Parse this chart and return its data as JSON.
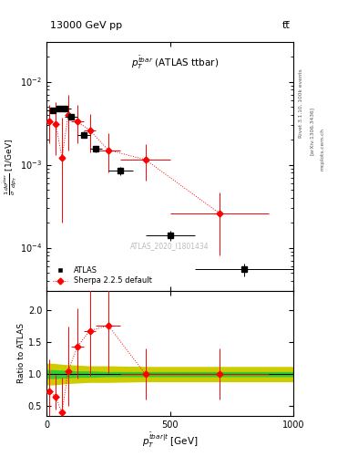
{
  "header_left": "13000 GeV pp",
  "header_right": "tt̅",
  "right_label_top": "Rivet 3.1.10, 100k events",
  "right_label_mid": "[arXiv:1306.3436]",
  "right_label_bot": "mcplots.cern.ch",
  "plot_id": "ATLAS_2020_I1801434",
  "ylabel_main": "$\\frac{1}{\\sigma}\\frac{d\\sigma^{\\bar{t}bar}}{dp_T}$ [1/GeV]",
  "ylabel_ratio": "Ratio to ATLAS",
  "xlabel": "$p^{\\bar{t}bar|t}_T$ [GeV]",
  "xlim": [
    0,
    1000
  ],
  "ylim_main": [
    3e-05,
    0.03
  ],
  "ylim_ratio": [
    0.35,
    2.3
  ],
  "ratio_yticks": [
    0.5,
    1.0,
    1.5,
    2.0
  ],
  "atlas_x": [
    25,
    50,
    75,
    100,
    150,
    200,
    300,
    500,
    800
  ],
  "atlas_y": [
    0.0045,
    0.0048,
    0.0047,
    0.0038,
    0.0023,
    0.00155,
    0.00085,
    0.00014,
    5.5e-05
  ],
  "atlas_xerr_lo": [
    25,
    25,
    25,
    25,
    25,
    25,
    50,
    100,
    200
  ],
  "atlas_xerr_hi": [
    25,
    25,
    25,
    25,
    25,
    25,
    50,
    100,
    200
  ],
  "atlas_yerr_lo": [
    0.0003,
    0.0003,
    0.0003,
    0.0003,
    0.0002,
    0.00015,
    0.0001,
    2e-05,
    1e-05
  ],
  "atlas_yerr_hi": [
    0.0003,
    0.0003,
    0.0003,
    0.0003,
    0.0002,
    0.00015,
    0.0001,
    2e-05,
    1e-05
  ],
  "sherpa_x": [
    12.5,
    37.5,
    62.5,
    87.5,
    125,
    175,
    250,
    400,
    700
  ],
  "sherpa_y": [
    0.0033,
    0.0031,
    0.0012,
    0.004,
    0.0033,
    0.0026,
    0.0015,
    0.00115,
    0.00026
  ],
  "sherpa_xerr_lo": [
    12.5,
    12.5,
    12.5,
    12.5,
    25,
    25,
    50,
    100,
    200
  ],
  "sherpa_xerr_hi": [
    12.5,
    12.5,
    12.5,
    12.5,
    25,
    25,
    50,
    100,
    200
  ],
  "sherpa_yerr_lo": [
    0.0015,
    0.0018,
    0.001,
    0.0025,
    0.0015,
    0.0012,
    0.0007,
    0.0005,
    0.00018
  ],
  "sherpa_yerr_hi": [
    0.002,
    0.0025,
    0.0025,
    0.003,
    0.002,
    0.0015,
    0.0009,
    0.0006,
    0.0002
  ],
  "ratio_x": [
    12.5,
    37.5,
    62.5,
    87.5,
    125,
    175,
    250,
    400,
    700
  ],
  "ratio_y": [
    0.73,
    0.64,
    0.4,
    1.05,
    1.43,
    1.68,
    1.76,
    1.0,
    1.0
  ],
  "ratio_xerr_lo": [
    12.5,
    12.5,
    12.5,
    12.5,
    25,
    25,
    50,
    100,
    200
  ],
  "ratio_xerr_hi": [
    12.5,
    12.5,
    12.5,
    12.5,
    25,
    25,
    50,
    100,
    200
  ],
  "ratio_yerr_lo": [
    0.4,
    0.2,
    0.35,
    0.55,
    0.5,
    0.7,
    0.75,
    0.4,
    0.4
  ],
  "ratio_yerr_hi": [
    0.5,
    0.35,
    0.55,
    0.7,
    0.6,
    0.8,
    0.9,
    0.4,
    0.4
  ],
  "green_band_x": [
    0,
    25,
    75,
    125,
    175,
    250,
    400,
    1000
  ],
  "green_band_lo": [
    0.94,
    0.94,
    0.95,
    0.96,
    0.96,
    0.97,
    0.97,
    0.97
  ],
  "green_band_hi": [
    1.06,
    1.06,
    1.05,
    1.04,
    1.04,
    1.03,
    1.03,
    1.03
  ],
  "yellow_band_x": [
    0,
    25,
    75,
    125,
    175,
    250,
    400,
    1000
  ],
  "yellow_band_lo": [
    0.84,
    0.84,
    0.86,
    0.87,
    0.88,
    0.88,
    0.89,
    0.89
  ],
  "yellow_band_hi": [
    1.16,
    1.16,
    1.14,
    1.13,
    1.12,
    1.12,
    1.11,
    1.11
  ],
  "atlas_color": "black",
  "sherpa_color": "red",
  "green_color": "#33cc33",
  "yellow_color": "#cccc00",
  "annotation_color": "#aaaaaa"
}
